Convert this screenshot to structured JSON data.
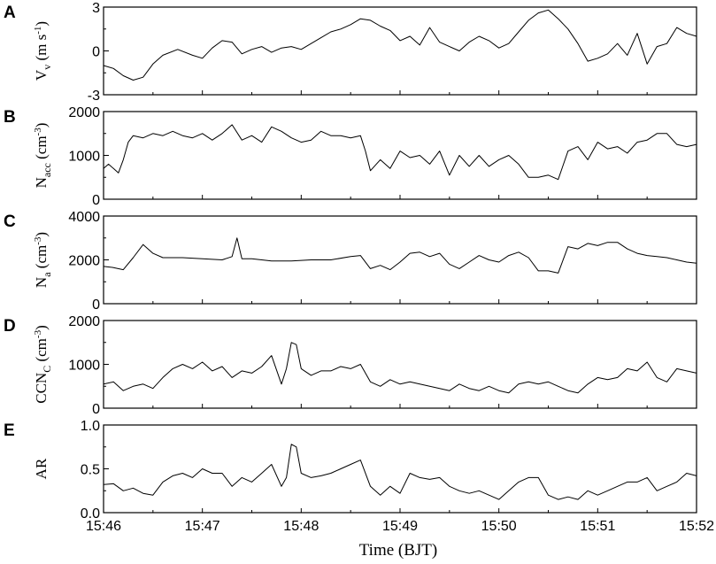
{
  "chart_data": [
    {
      "type": "line",
      "panel": "A",
      "ylabel_main": "V",
      "ylabel_sub": "v",
      "ylabel_unit": "(m s",
      "ylabel_unit_sup": "-1",
      "ylabel_unit_end": ")",
      "ylim": [
        -3,
        3
      ],
      "yticks": [
        -3,
        0,
        3
      ],
      "ytick_labels": [
        "-3",
        "0",
        "3"
      ],
      "series": [
        {
          "x": [
            0,
            0.1,
            0.2,
            0.3,
            0.4,
            0.5,
            0.6,
            0.75,
            0.9,
            1.0,
            1.1,
            1.2,
            1.3,
            1.4,
            1.5,
            1.6,
            1.7,
            1.8,
            1.9,
            2.0,
            2.1,
            2.2,
            2.3,
            2.4,
            2.5,
            2.6,
            2.7,
            2.8,
            2.9,
            3.0,
            3.1,
            3.2,
            3.3,
            3.4,
            3.5,
            3.6,
            3.7,
            3.8,
            3.9,
            4.0,
            4.1,
            4.2,
            4.3,
            4.4,
            4.5,
            4.6,
            4.7,
            4.8,
            4.9,
            5.0,
            5.1,
            5.2,
            5.3,
            5.4,
            5.5,
            5.6,
            5.7,
            5.8,
            5.9,
            6.0
          ],
          "y": [
            -1.0,
            -1.2,
            -1.7,
            -2.0,
            -1.8,
            -0.9,
            -0.3,
            0.1,
            -0.3,
            -0.5,
            0.2,
            0.7,
            0.6,
            -0.2,
            0.1,
            0.3,
            -0.1,
            0.2,
            0.3,
            0.1,
            0.5,
            0.9,
            1.3,
            1.5,
            1.8,
            2.2,
            2.1,
            1.7,
            1.4,
            0.7,
            1.0,
            0.4,
            1.6,
            0.6,
            0.3,
            0.0,
            0.6,
            1.0,
            0.7,
            0.2,
            0.5,
            1.3,
            2.1,
            2.6,
            2.8,
            2.2,
            1.5,
            0.5,
            -0.7,
            -0.5,
            -0.2,
            0.5,
            -0.3,
            1.2,
            -0.9,
            0.3,
            0.5,
            1.6,
            1.2,
            1.0
          ]
        }
      ]
    },
    {
      "type": "line",
      "panel": "B",
      "ylabel_main": "N",
      "ylabel_sub": "acc",
      "ylabel_unit": "(cm",
      "ylabel_unit_sup": "-3",
      "ylabel_unit_end": ")",
      "ylim": [
        0,
        2000
      ],
      "yticks": [
        0,
        1000,
        2000
      ],
      "ytick_labels": [
        "0",
        "1000",
        "2000"
      ],
      "series": [
        {
          "x": [
            0,
            0.05,
            0.1,
            0.15,
            0.2,
            0.25,
            0.3,
            0.4,
            0.5,
            0.6,
            0.7,
            0.8,
            0.9,
            1.0,
            1.1,
            1.2,
            1.3,
            1.4,
            1.5,
            1.6,
            1.7,
            1.8,
            1.9,
            2.0,
            2.1,
            2.2,
            2.3,
            2.4,
            2.5,
            2.6,
            2.65,
            2.7,
            2.8,
            2.9,
            3.0,
            3.1,
            3.2,
            3.3,
            3.4,
            3.5,
            3.6,
            3.7,
            3.8,
            3.9,
            4.0,
            4.1,
            4.2,
            4.3,
            4.4,
            4.5,
            4.6,
            4.7,
            4.8,
            4.9,
            5.0,
            5.1,
            5.2,
            5.3,
            5.4,
            5.5,
            5.6,
            5.7,
            5.8,
            5.9,
            6.0
          ],
          "y": [
            700,
            800,
            700,
            600,
            900,
            1300,
            1450,
            1400,
            1500,
            1450,
            1550,
            1450,
            1400,
            1500,
            1350,
            1500,
            1700,
            1350,
            1450,
            1300,
            1650,
            1550,
            1400,
            1300,
            1350,
            1550,
            1450,
            1450,
            1400,
            1450,
            1100,
            650,
            900,
            700,
            1100,
            950,
            1000,
            800,
            1100,
            550,
            1000,
            750,
            1000,
            750,
            900,
            1000,
            800,
            500,
            500,
            550,
            450,
            1100,
            1200,
            900,
            1300,
            1150,
            1200,
            1050,
            1300,
            1350,
            1500,
            1500,
            1250,
            1200,
            1250
          ]
        }
      ]
    },
    {
      "type": "line",
      "panel": "C",
      "ylabel_main": "N",
      "ylabel_sub": "a",
      "ylabel_unit": "(cm",
      "ylabel_unit_sup": "-3",
      "ylabel_unit_end": ")",
      "ylim": [
        0,
        4000
      ],
      "yticks": [
        0,
        2000,
        4000
      ],
      "ytick_labels": [
        "0",
        "2000",
        "4000"
      ],
      "series": [
        {
          "x": [
            0,
            0.1,
            0.2,
            0.3,
            0.4,
            0.5,
            0.6,
            0.8,
            1.0,
            1.2,
            1.3,
            1.35,
            1.4,
            1.5,
            1.7,
            1.9,
            2.1,
            2.3,
            2.5,
            2.6,
            2.7,
            2.8,
            2.9,
            3.0,
            3.1,
            3.2,
            3.3,
            3.4,
            3.5,
            3.6,
            3.7,
            3.8,
            3.9,
            4.0,
            4.1,
            4.2,
            4.3,
            4.4,
            4.5,
            4.6,
            4.7,
            4.8,
            4.9,
            5.0,
            5.1,
            5.2,
            5.3,
            5.4,
            5.5,
            5.6,
            5.7,
            5.8,
            5.9,
            6.0
          ],
          "y": [
            1700,
            1650,
            1550,
            2100,
            2700,
            2300,
            2100,
            2100,
            2050,
            2000,
            2150,
            3000,
            2050,
            2050,
            1950,
            1950,
            2000,
            2000,
            2150,
            2200,
            1600,
            1750,
            1550,
            1900,
            2300,
            2350,
            2150,
            2300,
            1800,
            1600,
            1900,
            2200,
            2000,
            1900,
            2200,
            2350,
            2100,
            1500,
            1500,
            1400,
            2600,
            2500,
            2750,
            2650,
            2800,
            2800,
            2500,
            2300,
            2200,
            2150,
            2100,
            2000,
            1900,
            1850
          ]
        }
      ]
    },
    {
      "type": "line",
      "panel": "D",
      "ylabel_main": "CCN",
      "ylabel_sub": "C",
      "ylabel_unit": "(cm",
      "ylabel_unit_sup": "-3",
      "ylabel_unit_end": ")",
      "ylim": [
        0,
        2000
      ],
      "yticks": [
        0,
        1000,
        2000
      ],
      "ytick_labels": [
        "0",
        "1000",
        "2000"
      ],
      "series": [
        {
          "x": [
            0,
            0.1,
            0.2,
            0.3,
            0.4,
            0.5,
            0.6,
            0.7,
            0.8,
            0.9,
            1.0,
            1.1,
            1.2,
            1.3,
            1.4,
            1.5,
            1.6,
            1.7,
            1.8,
            1.85,
            1.9,
            1.95,
            2.0,
            2.1,
            2.2,
            2.3,
            2.4,
            2.5,
            2.6,
            2.7,
            2.8,
            2.9,
            3.0,
            3.1,
            3.2,
            3.3,
            3.4,
            3.5,
            3.6,
            3.7,
            3.8,
            3.9,
            4.0,
            4.1,
            4.2,
            4.3,
            4.4,
            4.5,
            4.6,
            4.7,
            4.8,
            4.9,
            5.0,
            5.1,
            5.2,
            5.3,
            5.4,
            5.5,
            5.6,
            5.7,
            5.8,
            5.9,
            6.0
          ],
          "y": [
            550,
            600,
            400,
            500,
            550,
            450,
            700,
            900,
            1000,
            900,
            1050,
            850,
            950,
            700,
            850,
            800,
            950,
            1200,
            550,
            900,
            1500,
            1450,
            900,
            750,
            850,
            850,
            950,
            900,
            1000,
            600,
            500,
            650,
            550,
            600,
            550,
            500,
            450,
            400,
            550,
            450,
            400,
            500,
            400,
            350,
            550,
            600,
            550,
            600,
            500,
            400,
            350,
            550,
            700,
            650,
            700,
            900,
            850,
            1050,
            700,
            600,
            900,
            850,
            800
          ]
        }
      ]
    },
    {
      "type": "line",
      "panel": "E",
      "ylabel_main": "AR",
      "ylabel_sub": "",
      "ylabel_unit": "",
      "ylabel_unit_sup": "",
      "ylabel_unit_end": "",
      "ylim": [
        0.0,
        1.0
      ],
      "yticks": [
        0.0,
        0.5,
        1.0
      ],
      "ytick_labels": [
        "0.0",
        "0.5",
        "1.0"
      ],
      "series": [
        {
          "x": [
            0,
            0.1,
            0.2,
            0.3,
            0.4,
            0.5,
            0.6,
            0.7,
            0.8,
            0.9,
            1.0,
            1.1,
            1.2,
            1.3,
            1.4,
            1.5,
            1.6,
            1.7,
            1.8,
            1.85,
            1.9,
            1.95,
            2.0,
            2.1,
            2.2,
            2.3,
            2.4,
            2.5,
            2.6,
            2.7,
            2.8,
            2.9,
            3.0,
            3.1,
            3.2,
            3.3,
            3.4,
            3.5,
            3.6,
            3.7,
            3.8,
            3.9,
            4.0,
            4.1,
            4.2,
            4.3,
            4.4,
            4.5,
            4.6,
            4.7,
            4.8,
            4.9,
            5.0,
            5.1,
            5.2,
            5.3,
            5.4,
            5.5,
            5.6,
            5.7,
            5.8,
            5.9,
            6.0
          ],
          "y": [
            0.32,
            0.33,
            0.25,
            0.28,
            0.22,
            0.2,
            0.35,
            0.42,
            0.45,
            0.4,
            0.5,
            0.45,
            0.45,
            0.3,
            0.4,
            0.35,
            0.45,
            0.55,
            0.3,
            0.4,
            0.78,
            0.75,
            0.45,
            0.4,
            0.42,
            0.45,
            0.5,
            0.55,
            0.6,
            0.3,
            0.2,
            0.3,
            0.22,
            0.45,
            0.4,
            0.38,
            0.4,
            0.3,
            0.25,
            0.22,
            0.25,
            0.2,
            0.15,
            0.25,
            0.35,
            0.4,
            0.4,
            0.2,
            0.15,
            0.18,
            0.15,
            0.25,
            0.2,
            0.25,
            0.3,
            0.35,
            0.35,
            0.4,
            0.25,
            0.3,
            0.35,
            0.45,
            0.42
          ]
        }
      ]
    }
  ],
  "x_axis": {
    "label": "Time (BJT)",
    "xlim": [
      0,
      6
    ],
    "ticks": [
      0,
      1,
      2,
      3,
      4,
      5,
      6
    ],
    "tick_labels": [
      "15:46",
      "15:47",
      "15:48",
      "15:49",
      "15:50",
      "15:51",
      "15:52"
    ]
  }
}
